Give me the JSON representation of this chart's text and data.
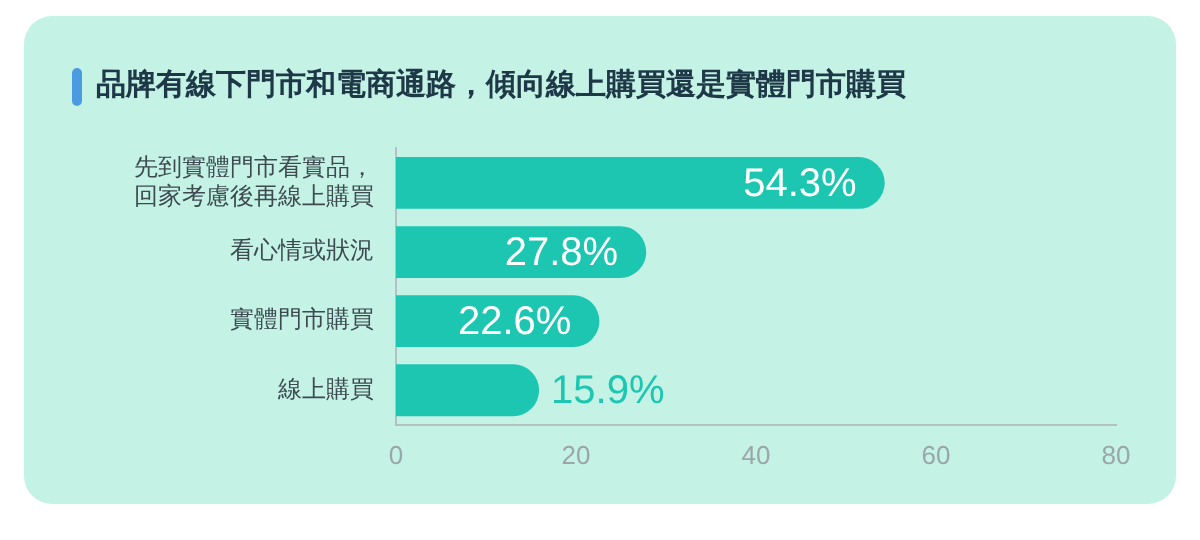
{
  "chart_data": {
    "type": "bar",
    "orientation": "horizontal",
    "title": "品牌有線下門市和電商通路，傾向線上購買還是實體門市購買",
    "categories": [
      "先到實體門市看實品，回家考慮後再線上購買",
      "看心情或狀況",
      "實體門市購買",
      "線上購買"
    ],
    "values": [
      54.3,
      27.8,
      22.6,
      15.9
    ],
    "value_labels": [
      "54.3%",
      "27.8%",
      "22.6%",
      "15.9%"
    ],
    "color": "#1cc6b1",
    "xlim": [
      0,
      80
    ],
    "xticks": [
      0,
      20,
      40,
      60,
      80
    ],
    "grid": false,
    "legend": false
  }
}
